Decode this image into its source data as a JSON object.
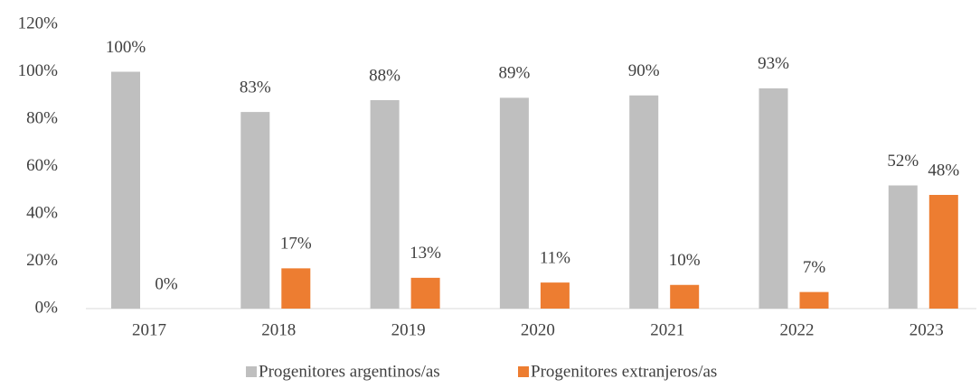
{
  "chart_data": {
    "type": "bar",
    "categories": [
      "2017",
      "2018",
      "2019",
      "2020",
      "2021",
      "2022",
      "2023"
    ],
    "series": [
      {
        "name": "Progenitores argentinos/as",
        "color": "#bfbfbf",
        "values": [
          100,
          83,
          88,
          89,
          90,
          93,
          52
        ],
        "value_labels": [
          "100%",
          "83%",
          "88%",
          "89%",
          "90%",
          "93%",
          "52%"
        ]
      },
      {
        "name": "Progenitores extranjeros/as",
        "color": "#ed7d31",
        "values": [
          0,
          17,
          13,
          11,
          10,
          7,
          48
        ],
        "value_labels": [
          "0%",
          "17%",
          "13%",
          "11%",
          "10%",
          "7%",
          "48%"
        ]
      }
    ],
    "ylim": [
      0,
      120
    ],
    "yticks": [
      {
        "value": 0,
        "label": "0%"
      },
      {
        "value": 20,
        "label": "20%"
      },
      {
        "value": 40,
        "label": "40%"
      },
      {
        "value": 60,
        "label": "60%"
      },
      {
        "value": 80,
        "label": "80%"
      },
      {
        "value": 100,
        "label": "100%"
      },
      {
        "value": 120,
        "label": "120%"
      }
    ],
    "grid": false,
    "legend": "bottom"
  }
}
